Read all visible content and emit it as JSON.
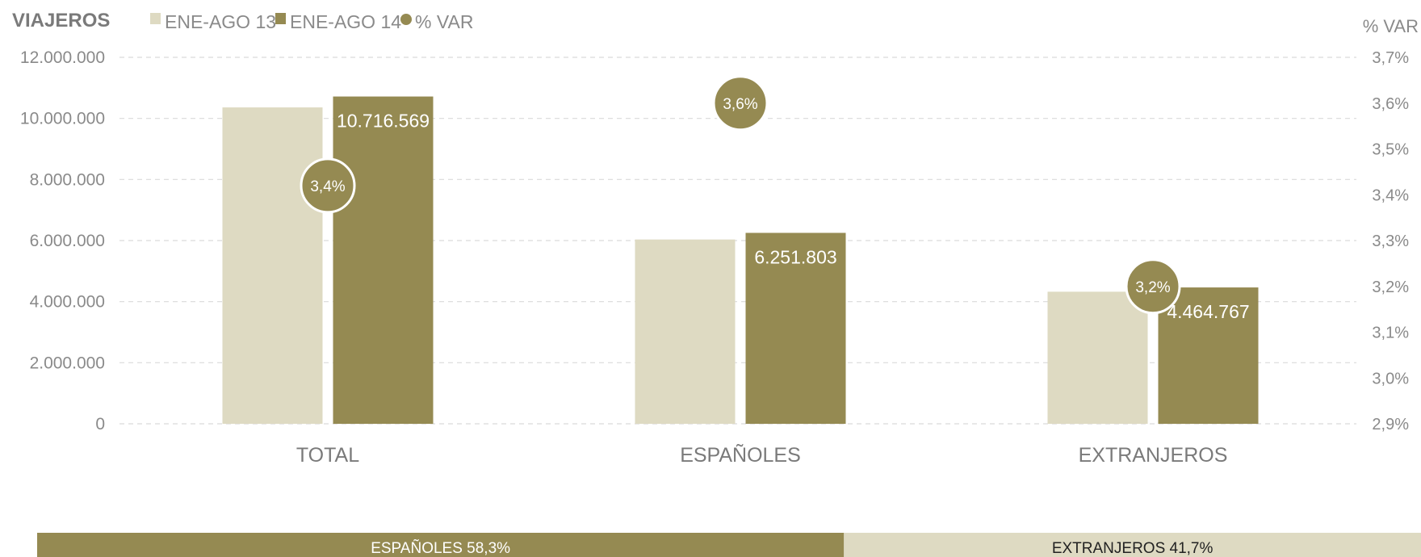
{
  "chart_data": {
    "type": "bar",
    "title": "VIAJEROS",
    "legend": {
      "placement": "top-left",
      "entries": [
        "ENE-AGO 13",
        "ENE-AGO 14",
        "% VAR"
      ]
    },
    "categories": [
      "TOTAL",
      "ESPAÑOLES",
      "EXTRANJEROS"
    ],
    "series": [
      {
        "name": "ENE-AGO 13",
        "values": [
          10360000,
          6035000,
          4325000
        ],
        "color": "#dedac2",
        "labels": [
          "",
          "",
          ""
        ]
      },
      {
        "name": "ENE-AGO 14",
        "values": [
          10716569,
          6251803,
          4464767
        ],
        "color": "#958a52",
        "labels": [
          "10.716.569",
          "6.251.803",
          "4.464.767"
        ]
      }
    ],
    "var_series": {
      "name": "% VAR",
      "values": [
        3.42,
        3.6,
        3.2
      ],
      "labels": [
        "3,4%",
        "3,6%",
        "3,2%"
      ],
      "color": "#958a52"
    },
    "ylabel_right": "% VAR",
    "ylim": [
      0,
      12000000
    ],
    "yticks": [
      0,
      2000000,
      4000000,
      6000000,
      8000000,
      10000000,
      12000000
    ],
    "ytick_labels": [
      "0",
      "2.000.000",
      "4.000.000",
      "6.000.000",
      "8.000.000",
      "10.000.000",
      "12.000.000"
    ],
    "ylim_right": [
      2.9,
      3.7
    ],
    "yticks_right": [
      2.9,
      3.0,
      3.1,
      3.2,
      3.3,
      3.4,
      3.5,
      3.6,
      3.7
    ],
    "ytick_labels_right": [
      "2,9%",
      "3,0%",
      "3,1%",
      "3,2%",
      "3,3%",
      "3,4%",
      "3,5%",
      "3,6%",
      "3,7%"
    ],
    "grid": true
  },
  "share_bar": {
    "segments": [
      {
        "label": "ESPAÑOLES 58,3%",
        "value": 58.3,
        "color": "#958a52",
        "text_color": "#ffffff"
      },
      {
        "label": "EXTRANJEROS 41,7%",
        "value": 41.7,
        "color": "#dedac2",
        "text_color": "#222222"
      }
    ]
  }
}
